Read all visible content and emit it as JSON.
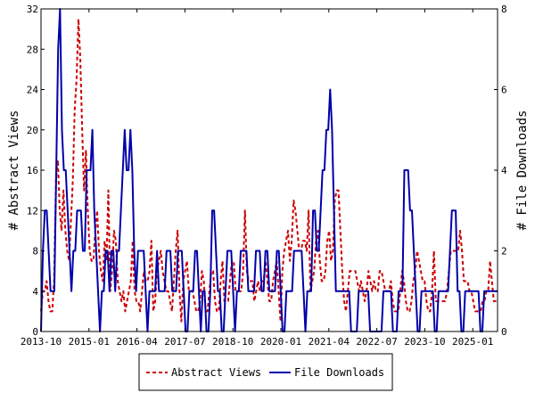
{
  "chart_data": {
    "type": "line",
    "x_tick_labels": [
      "2013-10",
      "2015-01",
      "2016-04",
      "2017-07",
      "2018-10",
      "2020-01",
      "2021-04",
      "2022-07",
      "2023-10",
      "2025-01"
    ],
    "y_left": {
      "label": "# Abstract Views",
      "range": [
        0,
        32
      ],
      "ticks": [
        "0",
        "4",
        "8",
        "12",
        "16",
        "20",
        "24",
        "28",
        "32"
      ]
    },
    "y_right": {
      "label": "# File Downloads",
      "range": [
        0,
        8
      ],
      "ticks": [
        "0",
        "2",
        "4",
        "6",
        "8"
      ]
    },
    "legend_position": "bottom-center",
    "series": [
      {
        "name": "Abstract Views",
        "axis": "left",
        "color": "#cc0000",
        "style": "dashed",
        "values": [
          2,
          4,
          4,
          5,
          3,
          2,
          2,
          5,
          15,
          17,
          12,
          10,
          14,
          10,
          8,
          7,
          11,
          15,
          22,
          25,
          31,
          27,
          20,
          14,
          18,
          12,
          8,
          7,
          7,
          10,
          12,
          8,
          6,
          5,
          9,
          7,
          14,
          4,
          6,
          10,
          9,
          5,
          4,
          3,
          4,
          2,
          3,
          4,
          5,
          9,
          4,
          3,
          3,
          2,
          4,
          6,
          5,
          5,
          6,
          9,
          2,
          3,
          6,
          7,
          8,
          6,
          5,
          4,
          4,
          3,
          2,
          5,
          8,
          10,
          4,
          1,
          5,
          6,
          7,
          4,
          4,
          4,
          3,
          2,
          2,
          3,
          6,
          5,
          2,
          2,
          4,
          6,
          6,
          3,
          2,
          2,
          5,
          7,
          3,
          3,
          3,
          5,
          7,
          7,
          4,
          4,
          4,
          4,
          6,
          12,
          6,
          5,
          5,
          5,
          3,
          4,
          5,
          4,
          5,
          5,
          7,
          5,
          3,
          3,
          5,
          6,
          7,
          4,
          1,
          6,
          8,
          9,
          10,
          7,
          9,
          13,
          12,
          10,
          8,
          8,
          9,
          9,
          8,
          12,
          4,
          5,
          6,
          9,
          10,
          7,
          5,
          5,
          6,
          9,
          10,
          7,
          8,
          13,
          14,
          14,
          10,
          6,
          3,
          2,
          4,
          6,
          6,
          6,
          6,
          5,
          4,
          5,
          4,
          3,
          4,
          6,
          5,
          4,
          5,
          4,
          4,
          6,
          6,
          5,
          4,
          4,
          4,
          5,
          3,
          2,
          2,
          2,
          4,
          6,
          5,
          3,
          2,
          2,
          3,
          5,
          6,
          8,
          7,
          6,
          5,
          5,
          3,
          2,
          2,
          4,
          8,
          3,
          3,
          3,
          3,
          3,
          3,
          4,
          6,
          8,
          8,
          8,
          8,
          8,
          10,
          8,
          5,
          5,
          5,
          4,
          4,
          3,
          2,
          2,
          2,
          2,
          3,
          3,
          4,
          4,
          7,
          5,
          3,
          3,
          3
        ]
      },
      {
        "name": "File Downloads",
        "axis": "right",
        "color": "#0000aa",
        "style": "solid",
        "values": [
          0,
          2,
          3,
          3,
          2,
          1,
          1,
          1,
          4,
          7,
          8,
          5,
          4,
          4,
          3,
          2,
          1,
          2,
          2,
          3,
          3,
          3,
          2,
          2,
          4,
          4,
          4,
          5,
          3,
          2,
          1,
          0,
          1,
          1,
          2,
          2,
          1,
          2,
          2,
          1,
          2,
          2,
          3,
          4,
          5,
          4,
          4,
          5,
          4,
          2,
          1,
          2,
          2,
          2,
          2,
          1,
          0,
          1,
          1,
          1,
          1,
          2,
          1,
          1,
          1,
          1,
          2,
          2,
          2,
          1,
          1,
          1,
          2,
          2,
          2,
          1,
          0,
          0,
          1,
          1,
          1,
          2,
          2,
          1,
          0,
          1,
          1,
          0,
          0,
          1,
          3,
          3,
          2,
          1,
          1,
          0,
          0,
          1,
          2,
          2,
          2,
          1,
          0,
          1,
          1,
          2,
          2,
          2,
          2,
          1,
          1,
          1,
          1,
          2,
          2,
          2,
          1,
          1,
          2,
          2,
          1,
          1,
          1,
          1,
          2,
          2,
          1,
          0,
          0,
          1,
          1,
          1,
          1,
          2,
          2,
          2,
          2,
          2,
          1,
          0,
          1,
          1,
          1,
          3,
          3,
          2,
          2,
          3,
          4,
          4,
          5,
          5,
          6,
          5,
          3,
          1,
          1,
          1,
          1,
          1,
          1,
          1,
          1,
          0,
          0,
          0,
          0,
          1,
          1,
          1,
          1,
          1,
          1,
          0,
          0,
          0,
          0,
          0,
          0,
          0,
          1,
          1,
          1,
          1,
          1,
          0,
          0,
          0,
          1,
          1,
          1,
          4,
          4,
          4,
          3,
          3,
          2,
          1,
          0,
          0,
          1,
          1,
          1,
          1,
          1,
          1,
          1,
          0,
          0,
          1,
          1,
          1,
          1,
          1,
          1,
          2,
          3,
          3,
          3,
          1,
          1,
          0,
          0,
          1,
          1,
          1,
          1,
          1,
          1,
          1,
          1,
          0,
          0,
          1,
          1,
          1,
          1,
          1,
          1,
          1,
          1
        ]
      }
    ]
  }
}
